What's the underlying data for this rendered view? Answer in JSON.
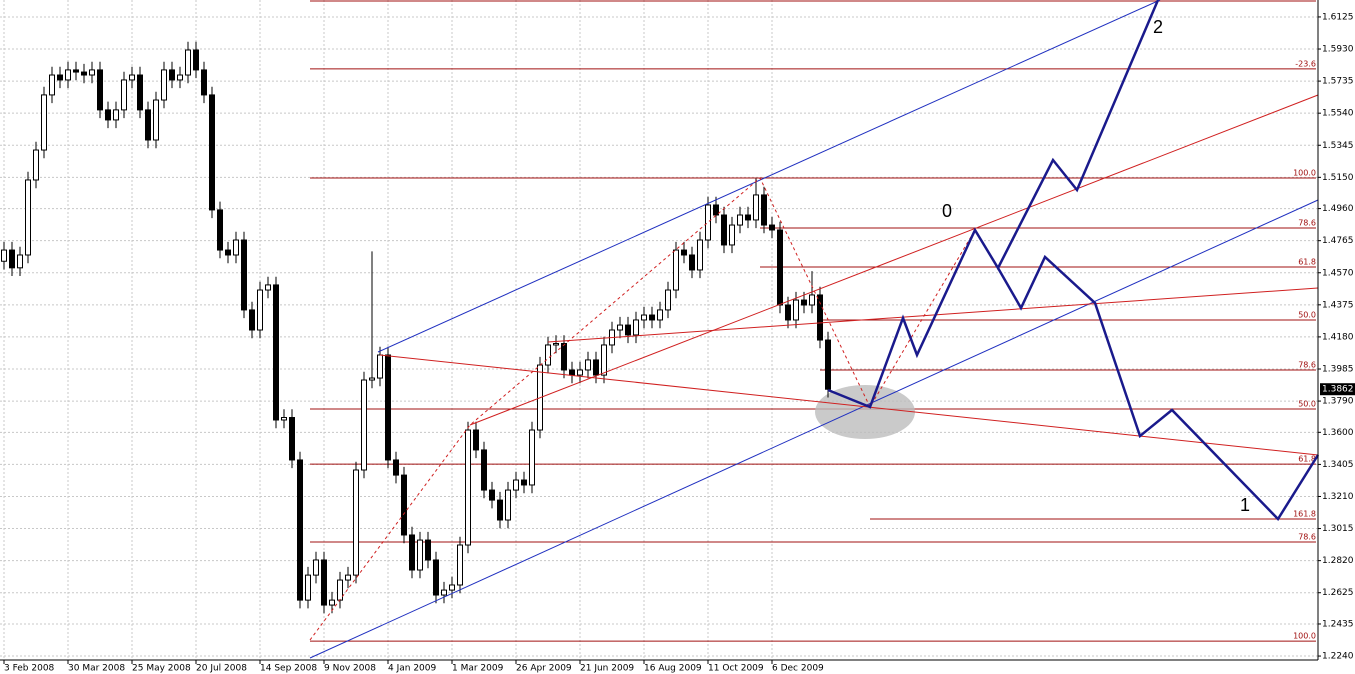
{
  "chart_data": {
    "type": "candlestick",
    "categories": [
      "3 Feb 2008",
      null,
      null,
      null,
      null,
      null,
      null,
      null,
      "30 Mar 2008",
      null,
      null,
      null,
      null,
      null,
      null,
      null,
      "25 May 2008",
      null,
      null,
      null,
      null,
      null,
      null,
      null,
      "20 Jul 2008",
      null,
      null,
      null,
      null,
      null,
      null,
      null,
      "14 Sep 2008",
      null,
      null,
      null,
      null,
      null,
      null,
      null,
      "9 Nov 2008",
      null,
      null,
      null,
      null,
      null,
      null,
      null,
      "4 Jan 2009",
      null,
      null,
      null,
      null,
      null,
      null,
      null,
      "1 Mar 2009",
      null,
      null,
      null,
      null,
      null,
      null,
      null,
      "26 Apr 2009",
      null,
      null,
      null,
      null,
      null,
      null,
      null,
      "21 Jun 2009",
      null,
      null,
      null,
      null,
      null,
      null,
      null,
      "16 Aug 2009",
      null,
      null,
      null,
      null,
      null,
      null,
      null,
      "11 Oct 2009",
      null,
      null,
      null,
      null,
      null,
      null,
      null,
      "6 Dec 2009",
      null,
      null,
      null,
      null,
      null,
      null,
      null
    ],
    "open": [
      1.464,
      1.4708,
      1.46,
      1.4678,
      1.5134,
      1.5316,
      1.5651,
      1.5772,
      1.5742,
      1.5803,
      1.579,
      1.5772,
      1.5803,
      1.556,
      1.5499,
      1.556,
      1.5742,
      1.5772,
      1.556,
      1.5377,
      1.562,
      1.5803,
      1.5742,
      1.5772,
      1.5924,
      1.5803,
      1.5651,
      1.4952,
      1.4708,
      1.4678,
      1.4769,
      1.4344,
      1.4222,
      1.4465,
      1.4496,
      1.3675,
      1.369,
      1.3432,
      1.258,
      1.2732,
      1.2824,
      1.255,
      1.258,
      1.2702,
      1.2732,
      1.3371,
      1.3918,
      1.393,
      1.407,
      1.3432,
      1.334,
      1.2976,
      1.2763,
      1.2945,
      1.2824,
      1.2611,
      1.2641,
      1.2672,
      1.2915,
      1.3614,
      1.3493,
      1.3249,
      1.3188,
      1.3067,
      1.3249,
      1.331,
      1.328,
      1.3614,
      1.4009,
      1.4131,
      1.414,
      1.3979,
      1.3948,
      1.3979,
      1.404,
      1.3948,
      1.4131,
      1.4222,
      1.4252,
      1.4192,
      1.4283,
      1.4313,
      1.4283,
      1.4344,
      1.4465,
      1.4708,
      1.4678,
      1.4587,
      1.4769,
      1.4982,
      1.4921,
      1.4739,
      1.486,
      1.4921,
      1.4891,
      1.5043,
      1.486,
      1.483,
      1.4374,
      1.4283,
      1.4404,
      1.4374,
      1.4435,
      1.4161
    ],
    "high": [
      1.4758,
      1.4758,
      1.4728,
      1.5184,
      1.5366,
      1.5701,
      1.5822,
      1.5822,
      1.5853,
      1.5853,
      1.584,
      1.5853,
      1.5853,
      1.561,
      1.561,
      1.5792,
      1.5822,
      1.5822,
      1.561,
      1.567,
      1.5853,
      1.5853,
      1.5822,
      1.5974,
      1.5974,
      1.5853,
      1.5701,
      1.5002,
      1.4758,
      1.4819,
      1.4819,
      1.4394,
      1.4515,
      1.4546,
      1.4546,
      1.374,
      1.374,
      1.3482,
      1.2782,
      1.2874,
      1.2874,
      1.263,
      1.2752,
      1.2782,
      1.3421,
      1.3968,
      1.47,
      1.412,
      1.412,
      1.3482,
      1.339,
      1.3026,
      1.2995,
      1.2995,
      1.2874,
      1.2691,
      1.2722,
      1.2965,
      1.3664,
      1.3664,
      1.3543,
      1.3299,
      1.3238,
      1.3299,
      1.336,
      1.336,
      1.3664,
      1.4059,
      1.4181,
      1.419,
      1.419,
      1.4029,
      1.4029,
      1.409,
      1.409,
      1.4181,
      1.4272,
      1.4302,
      1.4302,
      1.4333,
      1.4363,
      1.4363,
      1.4394,
      1.4515,
      1.4758,
      1.4758,
      1.4728,
      1.4819,
      1.5032,
      1.5032,
      1.4971,
      1.491,
      1.4971,
      1.4971,
      1.5143,
      1.5093,
      1.491,
      1.488,
      1.4424,
      1.4454,
      1.4454,
      1.458,
      1.4485,
      1.4211
    ],
    "low": [
      1.459,
      1.455,
      1.455,
      1.4628,
      1.5084,
      1.5266,
      1.5601,
      1.5692,
      1.5692,
      1.574,
      1.5722,
      1.5722,
      1.551,
      1.5449,
      1.5449,
      1.551,
      1.5692,
      1.551,
      1.5327,
      1.5327,
      1.557,
      1.5692,
      1.5692,
      1.5722,
      1.5753,
      1.5601,
      1.4902,
      1.4658,
      1.4628,
      1.4628,
      1.4294,
      1.4172,
      1.4172,
      1.4415,
      1.3625,
      1.3625,
      1.3382,
      1.253,
      1.253,
      1.2682,
      1.25,
      1.25,
      1.253,
      1.2652,
      1.2682,
      1.3321,
      1.3868,
      1.388,
      1.3382,
      1.329,
      1.2926,
      1.2713,
      1.2713,
      1.2774,
      1.2561,
      1.2561,
      1.2591,
      1.2622,
      1.2865,
      1.3443,
      1.3199,
      1.3138,
      1.3017,
      1.3017,
      1.3199,
      1.323,
      1.323,
      1.3564,
      1.3959,
      1.4081,
      1.3929,
      1.3898,
      1.3898,
      1.3929,
      1.3898,
      1.3898,
      1.4081,
      1.4172,
      1.4142,
      1.4142,
      1.4233,
      1.4233,
      1.4233,
      1.4294,
      1.4415,
      1.4628,
      1.4537,
      1.4537,
      1.4719,
      1.4871,
      1.4689,
      1.4689,
      1.481,
      1.4841,
      1.4841,
      1.481,
      1.478,
      1.4324,
      1.4233,
      1.4233,
      1.4324,
      1.4324,
      1.4111,
      1.3812
    ],
    "close": [
      1.4708,
      1.46,
      1.4678,
      1.5134,
      1.5316,
      1.5651,
      1.5772,
      1.5742,
      1.5803,
      1.579,
      1.5772,
      1.5803,
      1.556,
      1.5499,
      1.556,
      1.5742,
      1.5772,
      1.556,
      1.5377,
      1.562,
      1.5803,
      1.5742,
      1.5772,
      1.5924,
      1.5803,
      1.5651,
      1.4952,
      1.4708,
      1.4678,
      1.4769,
      1.4344,
      1.4222,
      1.4465,
      1.4496,
      1.3675,
      1.369,
      1.3432,
      1.258,
      1.2732,
      1.2824,
      1.255,
      1.258,
      1.2702,
      1.2732,
      1.3371,
      1.3918,
      1.393,
      1.407,
      1.3432,
      1.334,
      1.2976,
      1.2763,
      1.2945,
      1.2824,
      1.2611,
      1.2641,
      1.2672,
      1.2915,
      1.3614,
      1.3493,
      1.3249,
      1.3188,
      1.3067,
      1.3249,
      1.331,
      1.328,
      1.3614,
      1.4009,
      1.4131,
      1.414,
      1.3979,
      1.3948,
      1.3979,
      1.404,
      1.3948,
      1.4131,
      1.4222,
      1.4252,
      1.4192,
      1.4283,
      1.4313,
      1.4283,
      1.4344,
      1.4465,
      1.4708,
      1.4678,
      1.4587,
      1.4769,
      1.4982,
      1.4921,
      1.4739,
      1.486,
      1.4921,
      1.4891,
      1.5043,
      1.486,
      1.483,
      1.4374,
      1.4283,
      1.4404,
      1.4374,
      1.4435,
      1.4161,
      1.3862
    ],
    "ylim": [
      1.2216,
      1.6228
    ],
    "yticks": [
      1.6125,
      {
        "value": 1.593,
        "label": "1.5930"
      },
      1.5735,
      {
        "value": 1.554,
        "label": "1.5540"
      },
      1.5345,
      {
        "value": 1.515,
        "label": "1.5150"
      },
      {
        "value": 1.496,
        "label": "1.4960"
      },
      1.4765,
      {
        "value": 1.457,
        "label": "1.4570"
      },
      1.4375,
      {
        "value": 1.418,
        "label": "1.4180"
      },
      1.3985,
      {
        "value": 1.379,
        "label": "1.3790"
      },
      {
        "value": 1.36,
        "label": "1.3600"
      },
      1.3405,
      {
        "value": 1.321,
        "label": "1.3210"
      },
      1.3015,
      {
        "value": 1.282,
        "label": "1.2820"
      },
      1.2625,
      1.2435,
      {
        "value": 1.224,
        "label": "1.2240"
      }
    ],
    "grid": true,
    "last_price": 1.3862,
    "fib_levels": [
      {
        "label": "-23.6",
        "value": 1.5809
      },
      {
        "label": "100.0",
        "value": 1.5146
      },
      {
        "label": "78.6",
        "value": 1.4842
      },
      {
        "label": "61.8",
        "value": 1.4605
      },
      {
        "label": "50.0",
        "value": 1.4283
      },
      {
        "label": "78.6",
        "value": 1.3979
      },
      {
        "label": "50.0",
        "value": 1.3742
      },
      {
        "label": "61.8",
        "value": 1.3407
      },
      {
        "label": "161.8",
        "value": 1.3073
      },
      {
        "label": "78.6",
        "value": 1.2933
      },
      {
        "label": "100.0",
        "value": 1.2331
      }
    ],
    "wave_labels": [
      "0",
      "1",
      "2"
    ]
  }
}
